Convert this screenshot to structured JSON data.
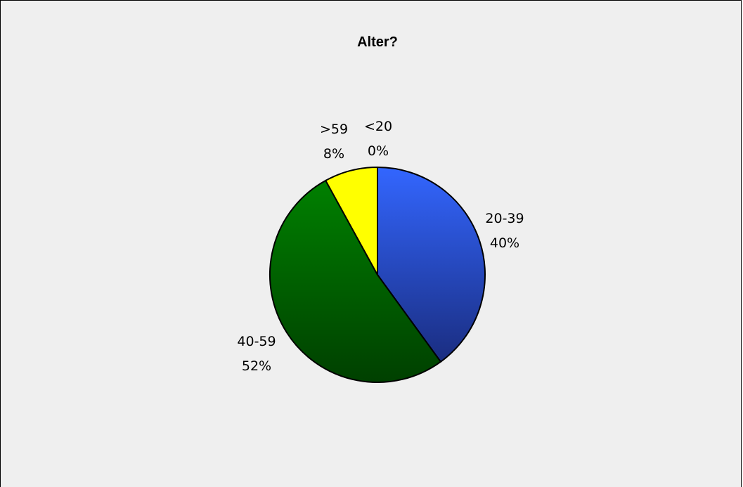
{
  "chart_data": {
    "type": "pie",
    "title": "Alter?",
    "slices": [
      {
        "category": "20-39",
        "percent_label": "40%",
        "value": 40
      },
      {
        "category": "40-59",
        "percent_label": "52%",
        "value": 52
      },
      {
        "category": ">59",
        "percent_label": "8%",
        "value": 8
      },
      {
        "category": "<20",
        "percent_label": "0%",
        "value": 0
      }
    ],
    "start_angle": "12 o'clock",
    "direction": "clockwise",
    "legend": "none",
    "colors": {
      "20-39": [
        "#3366ff",
        "#1a2d80"
      ],
      "40-59": [
        "#008000",
        "#004000"
      ],
      ">59": [
        "#ffff00",
        "#ffff00"
      ],
      "<20": [
        "#ffffff",
        "#ffffff"
      ],
      "background": "#efefef",
      "outline": "#000000"
    }
  }
}
